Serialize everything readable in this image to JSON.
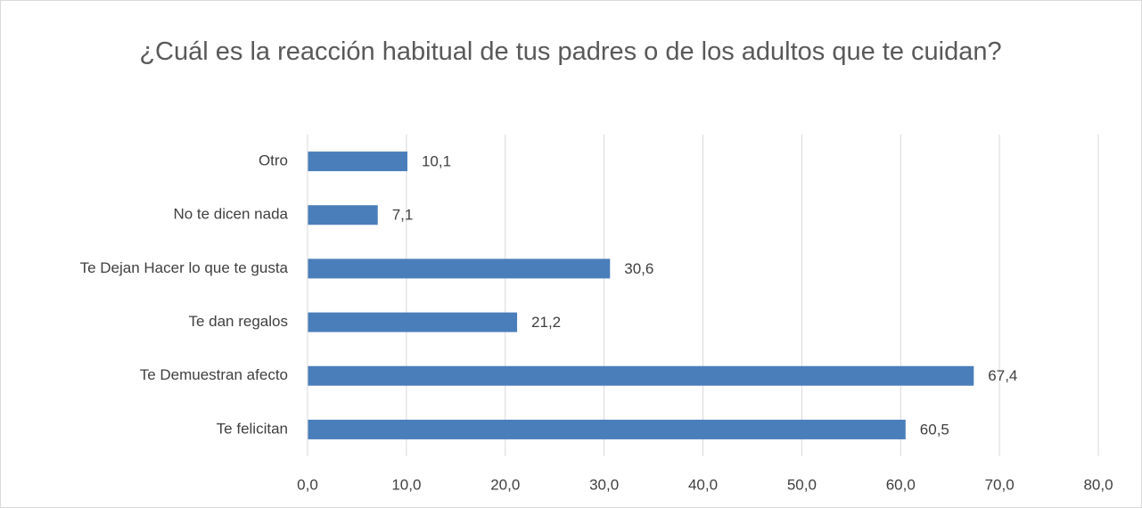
{
  "chart_data": {
    "type": "bar",
    "orientation": "horizontal",
    "title": "¿Cuál es la reacción habitual de tus padres o de los adultos que te cuidan?",
    "categories": [
      "Otro",
      "No te dicen nada",
      "Te Dejan Hacer lo que te gusta",
      "Te dan regalos",
      "Te Demuestran afecto",
      "Te felicitan"
    ],
    "values": [
      10.1,
      7.1,
      30.6,
      21.2,
      67.4,
      60.5
    ],
    "value_labels": [
      "10,1",
      "7,1",
      "30,6",
      "21,2",
      "67,4",
      "60,5"
    ],
    "color": "#4a7ebb",
    "xlim": [
      0,
      80
    ],
    "xticks": [
      {
        "value": 0,
        "label": "0,0"
      },
      {
        "value": 10,
        "label": "10,0"
      },
      {
        "value": 20,
        "label": "20,0"
      },
      {
        "value": 30,
        "label": "30,0"
      },
      {
        "value": 40,
        "label": "40,0"
      },
      {
        "value": 50,
        "label": "50,0"
      },
      {
        "value": 60,
        "label": "60,0"
      },
      {
        "value": 70,
        "label": "70,0"
      },
      {
        "value": 80,
        "label": "80,0"
      }
    ],
    "grid": true
  }
}
